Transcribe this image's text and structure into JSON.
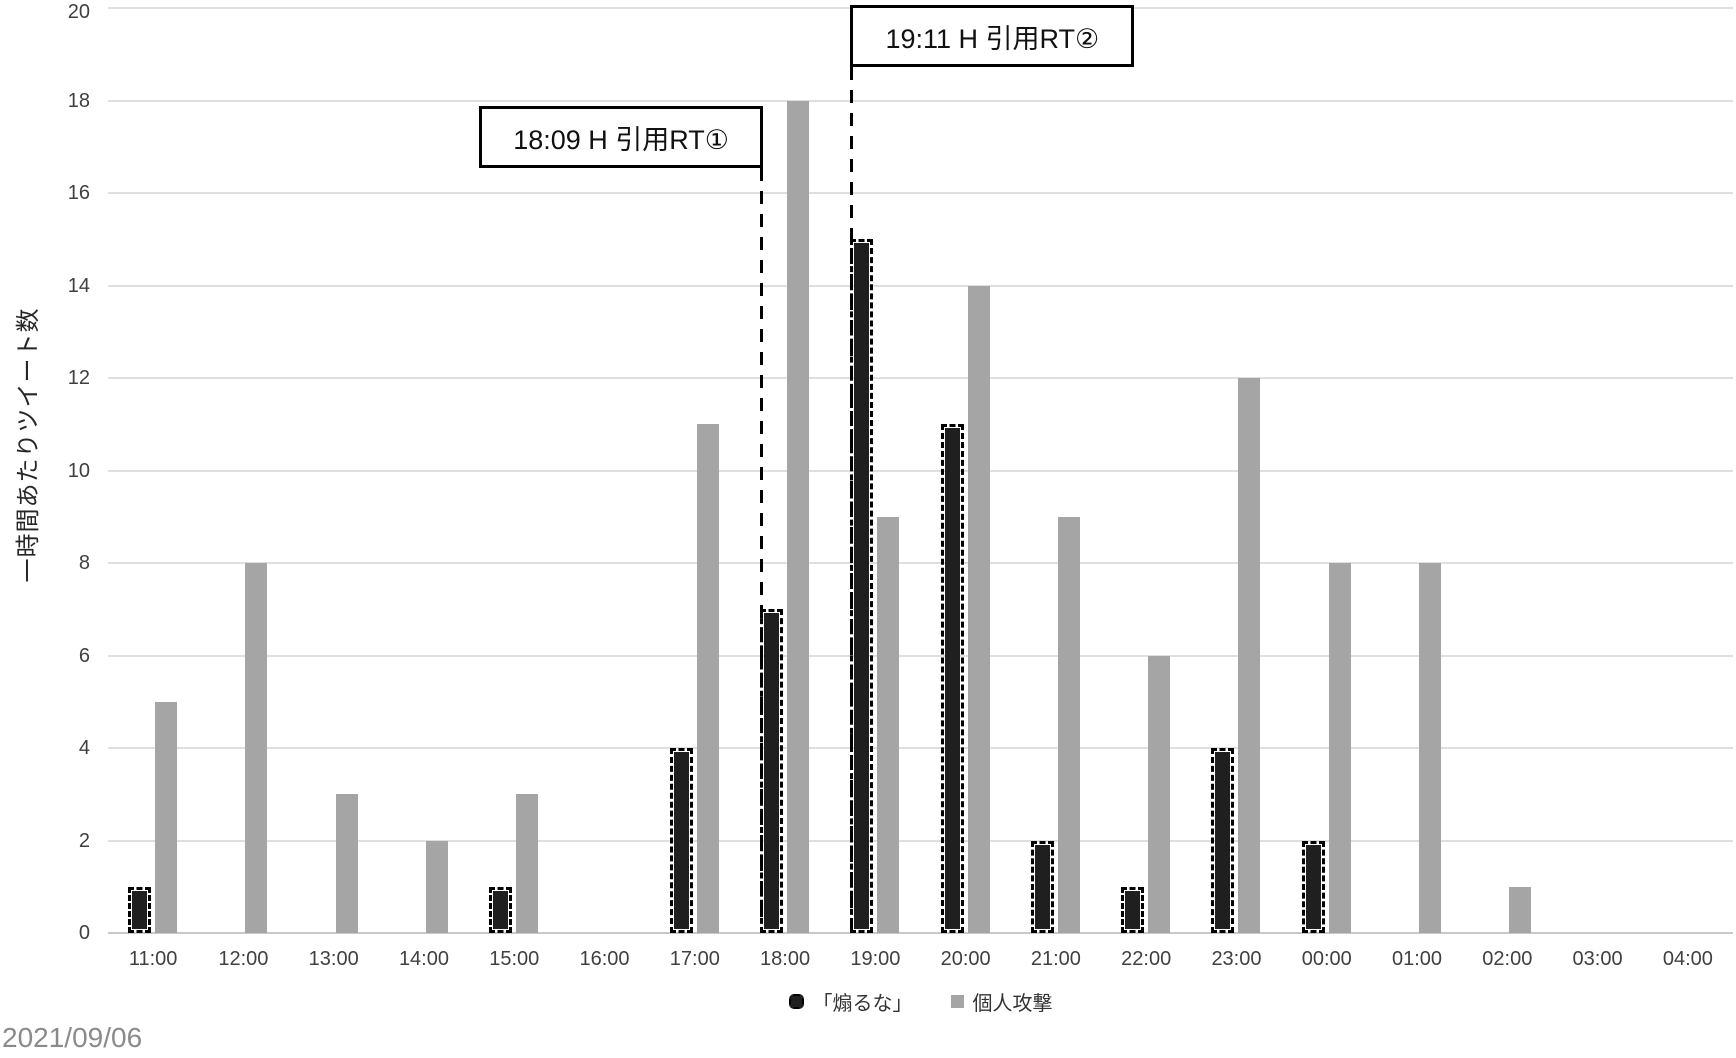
{
  "chart_data": {
    "type": "bar",
    "title": "",
    "xlabel": "",
    "ylabel": "一時間あたりツイート数",
    "ylim": [
      0,
      20
    ],
    "yticks": [
      0,
      2,
      4,
      6,
      8,
      10,
      12,
      14,
      16,
      18,
      20
    ],
    "grid": true,
    "legend_position": "bottom",
    "categories": [
      "11:00",
      "12:00",
      "13:00",
      "14:00",
      "15:00",
      "16:00",
      "17:00",
      "18:00",
      "19:00",
      "20:00",
      "21:00",
      "22:00",
      "23:00",
      "00:00",
      "01:00",
      "02:00",
      "03:00",
      "04:00"
    ],
    "series": [
      {
        "name": "「煽るな」",
        "color": "#1f1f1f",
        "style": "dark-dashed-outline",
        "values": [
          1,
          0,
          0,
          0,
          1,
          0,
          4,
          7,
          15,
          11,
          2,
          1,
          4,
          2,
          0,
          0,
          0,
          0
        ]
      },
      {
        "name": "個人攻撃",
        "color": "#a5a5a5",
        "style": "solid",
        "values": [
          5,
          8,
          3,
          2,
          3,
          0,
          11,
          18,
          9,
          14,
          9,
          6,
          12,
          8,
          8,
          1,
          0,
          0
        ]
      }
    ],
    "annotations": [
      {
        "label": "18:09 H 引用RT①",
        "category": "18:00",
        "category_index": 7,
        "line_attach": "box-bottom-right",
        "box_top": 106
      },
      {
        "label": "19:11 H 引用RT②",
        "category": "19:00",
        "category_index": 8,
        "line_attach": "box-bottom-left",
        "box_top": 5
      }
    ]
  },
  "footer": {
    "date": "2021/09/06"
  },
  "colors": {
    "background": "#ffffff",
    "gridline": "#dfdfdf",
    "axis_line": "#c9c9c9",
    "tick_text": "#404040",
    "series_1": "#1f1f1f",
    "series_2": "#a5a5a5",
    "annotation_border": "#000000",
    "date_text": "#8a8a8a"
  }
}
